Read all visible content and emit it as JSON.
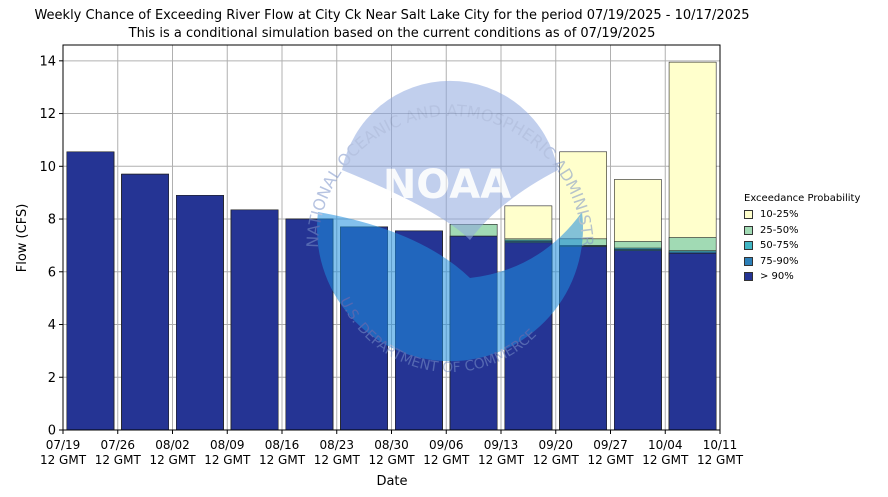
{
  "chart_data": {
    "type": "bar",
    "title": "Weekly Chance of Exceeding River Flow at City Ck Near Salt Lake City for the period 07/19/2025 - 10/17/2025",
    "subtitle": "This is a conditional simulation based on the current conditions as of 07/19/2025",
    "xlabel": "Date",
    "ylabel": "Flow (CFS)",
    "ylim": [
      0,
      14.6
    ],
    "yticks": [
      0,
      2,
      4,
      6,
      8,
      10,
      12,
      14
    ],
    "xtick_labels": [
      [
        "07/19",
        "12 GMT"
      ],
      [
        "07/26",
        "12 GMT"
      ],
      [
        "08/02",
        "12 GMT"
      ],
      [
        "08/09",
        "12 GMT"
      ],
      [
        "08/16",
        "12 GMT"
      ],
      [
        "08/23",
        "12 GMT"
      ],
      [
        "08/30",
        "12 GMT"
      ],
      [
        "09/06",
        "12 GMT"
      ],
      [
        "09/13",
        "12 GMT"
      ],
      [
        "09/20",
        "12 GMT"
      ],
      [
        "09/27",
        "12 GMT"
      ],
      [
        "10/04",
        "12 GMT"
      ],
      [
        "10/11",
        "12 GMT"
      ]
    ],
    "grid": true,
    "legend_title": "Exceedance Probability",
    "legend_position": "right",
    "series": [
      {
        "name": "10-25%",
        "color": "#ffffcc",
        "values": [
          10.55,
          9.7,
          8.9,
          8.35,
          8.0,
          7.7,
          7.55,
          7.8,
          8.5,
          10.55,
          9.5,
          13.95
        ]
      },
      {
        "name": "25-50%",
        "color": "#a1dab4",
        "values": [
          10.55,
          9.7,
          8.9,
          8.35,
          8.0,
          7.7,
          7.55,
          7.8,
          7.25,
          7.25,
          7.15,
          7.3
        ]
      },
      {
        "name": "50-75%",
        "color": "#41b6c4",
        "values": [
          10.55,
          9.7,
          8.9,
          8.35,
          8.0,
          7.7,
          7.55,
          7.35,
          7.2,
          7.0,
          6.9,
          6.8
        ]
      },
      {
        "name": "75-90%",
        "color": "#2c7fb8",
        "values": [
          10.55,
          9.7,
          8.9,
          8.35,
          8.0,
          7.7,
          7.55,
          7.35,
          7.15,
          6.98,
          6.85,
          6.75
        ]
      },
      {
        "name": "> 90%",
        "color": "#253494",
        "values": [
          10.55,
          9.7,
          8.9,
          8.35,
          8.0,
          7.7,
          7.55,
          7.35,
          7.1,
          6.95,
          6.8,
          6.7
        ]
      }
    ]
  },
  "watermark": {
    "text": "NATIONAL OCEANIC AND ATMOSPHERIC ADMINISTRATION",
    "logo_text": "NOAA",
    "bottom_text": "U.S. DEPARTMENT OF COMMERCE"
  }
}
